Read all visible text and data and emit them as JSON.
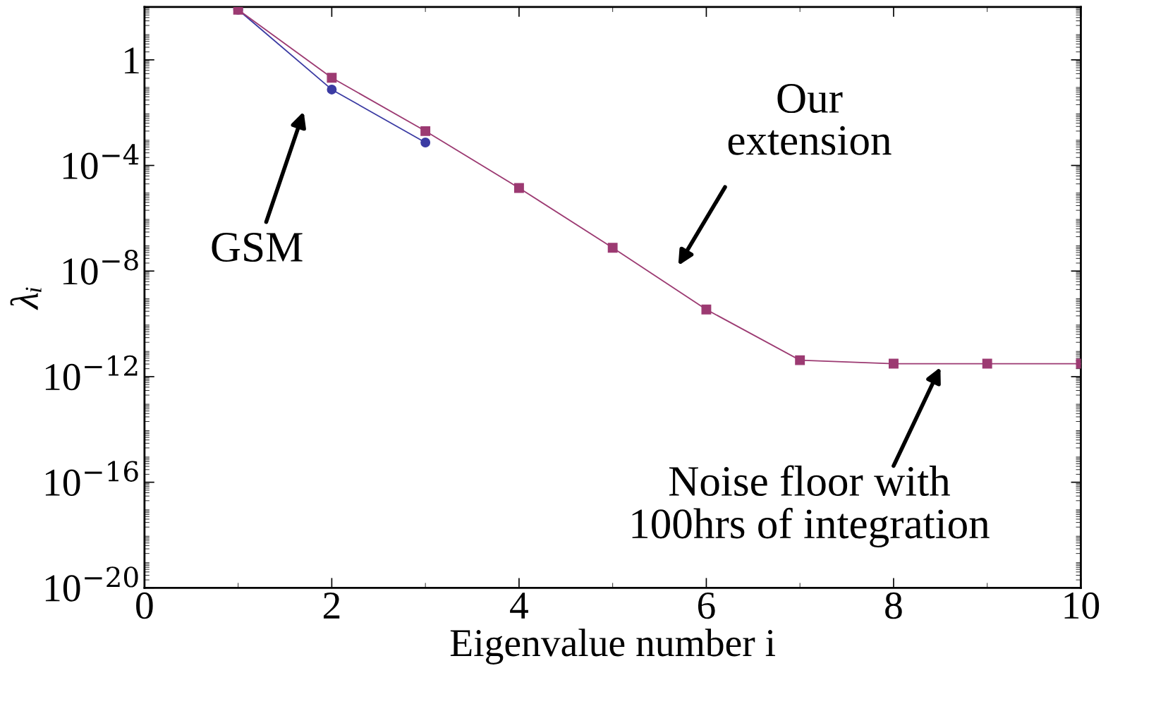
{
  "chart_data": {
    "type": "line",
    "xlabel": "Eigenvalue number i",
    "ylabel": "λᵢ",
    "log": "y",
    "grid": false,
    "legend": false,
    "xlim": [
      0,
      10
    ],
    "xticks": [
      0,
      2,
      4,
      6,
      8,
      10
    ],
    "ylim": [
      1e-20,
      100
    ],
    "yticks": [
      {
        "value": 1,
        "label": "1"
      },
      {
        "value": 0.0001,
        "label": "10$^{−4}$"
      },
      {
        "value": 1e-08,
        "label": "10$^{−8}$"
      },
      {
        "value": 1e-12,
        "label": "10$^{−12}$"
      },
      {
        "value": 1e-16,
        "label": "10$^{−16}$"
      },
      {
        "value": 1e-20,
        "label": "10$^{−20}$"
      }
    ],
    "series": [
      {
        "color": "#3b3ba3",
        "marker": "circle",
        "x": [
          1,
          2,
          3
        ],
        "values": [
          79,
          0.075,
          0.00074
        ]
      },
      {
        "color": "#9c3a72",
        "marker": "square",
        "x": [
          1,
          2,
          3,
          4,
          5,
          6,
          7,
          8,
          9,
          10
        ],
        "values": [
          79,
          0.21,
          0.002,
          1.4e-05,
          7.6e-08,
          3.5e-10,
          4.2e-12,
          3.1e-12,
          3.1e-12,
          3.1e-12
        ]
      }
    ],
    "annotations": [
      "GSM",
      "Our\nextension",
      "Noise floor with\n100hrs of integration"
    ]
  }
}
